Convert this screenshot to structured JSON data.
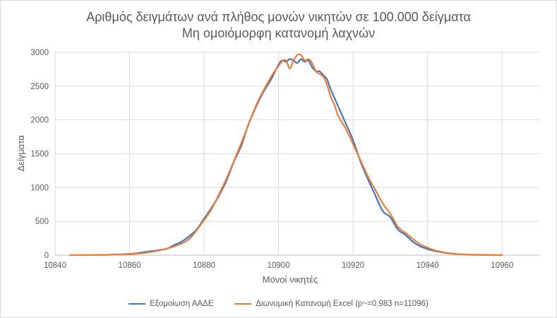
{
  "chart_data": {
    "type": "line",
    "title": "Αριθμός δειγμάτων ανά πλήθος μονών νικητών σε 100.000 δείγματα",
    "subtitle": "Μη ομοιόμορφη κατανομή λαχνών",
    "xlabel": "Μονοί νικητές",
    "ylabel": "Δείγματα",
    "xlim": [
      10840,
      10970
    ],
    "ylim": [
      0,
      3000
    ],
    "xticks": [
      10840,
      10860,
      10880,
      10900,
      10920,
      10940,
      10960
    ],
    "yticks": [
      0,
      500,
      1000,
      1500,
      2000,
      2500,
      3000
    ],
    "grid": true,
    "legend_position": "bottom",
    "series": [
      {
        "name": "Εξομοίωση ΑΑΔΕ",
        "color": "#4472C4",
        "x": [
          10850,
          10852,
          10854,
          10856,
          10858,
          10860,
          10862,
          10864,
          10866,
          10868,
          10870,
          10872,
          10874,
          10876,
          10878,
          10880,
          10882,
          10884,
          10886,
          10888,
          10890,
          10892,
          10894,
          10896,
          10898,
          10900,
          10901,
          10902,
          10903,
          10904,
          10905,
          10906,
          10907,
          10908,
          10909,
          10910,
          10911,
          10912,
          10913,
          10914,
          10916,
          10918,
          10920,
          10922,
          10924,
          10926,
          10928,
          10930,
          10932,
          10934,
          10936,
          10938,
          10940,
          10942,
          10944,
          10946,
          10948,
          10950,
          10952,
          10954,
          10956,
          10958,
          10960
        ],
        "values": [
          2,
          3,
          5,
          8,
          12,
          18,
          28,
          45,
          60,
          75,
          95,
          150,
          200,
          280,
          380,
          540,
          700,
          880,
          1100,
          1380,
          1620,
          1950,
          2200,
          2420,
          2600,
          2820,
          2880,
          2860,
          2900,
          2880,
          2840,
          2900,
          2860,
          2880,
          2780,
          2720,
          2720,
          2660,
          2600,
          2450,
          2200,
          1950,
          1700,
          1380,
          1120,
          880,
          650,
          560,
          380,
          300,
          200,
          130,
          90,
          60,
          40,
          25,
          15,
          10,
          6,
          4,
          2,
          1,
          0
        ]
      },
      {
        "name": "Διωνυμική Κατανομή Excel (p~=0,983 n=11096)",
        "color": "#ED7D31",
        "x": [
          10844,
          10848,
          10852,
          10856,
          10860,
          10864,
          10868,
          10872,
          10876,
          10880,
          10882,
          10884,
          10886,
          10888,
          10890,
          10892,
          10894,
          10896,
          10898,
          10900,
          10901,
          10902,
          10903,
          10904,
          10905,
          10906,
          10907,
          10908,
          10909,
          10910,
          10911,
          10912,
          10913,
          10914,
          10915,
          10916,
          10918,
          10920,
          10922,
          10924,
          10926,
          10928,
          10930,
          10932,
          10934,
          10936,
          10938,
          10940,
          10942,
          10944,
          10946,
          10948,
          10950,
          10952,
          10956,
          10960
        ],
        "values": [
          0,
          1,
          3,
          6,
          14,
          32,
          70,
          130,
          240,
          520,
          680,
          900,
          1130,
          1390,
          1660,
          1940,
          2220,
          2440,
          2640,
          2800,
          2870,
          2880,
          2760,
          2880,
          2960,
          2960,
          2880,
          2900,
          2840,
          2720,
          2680,
          2640,
          2520,
          2340,
          2220,
          2060,
          1870,
          1640,
          1400,
          1160,
          960,
          760,
          610,
          420,
          330,
          240,
          160,
          110,
          70,
          45,
          28,
          16,
          8,
          4,
          1,
          0
        ]
      }
    ]
  }
}
